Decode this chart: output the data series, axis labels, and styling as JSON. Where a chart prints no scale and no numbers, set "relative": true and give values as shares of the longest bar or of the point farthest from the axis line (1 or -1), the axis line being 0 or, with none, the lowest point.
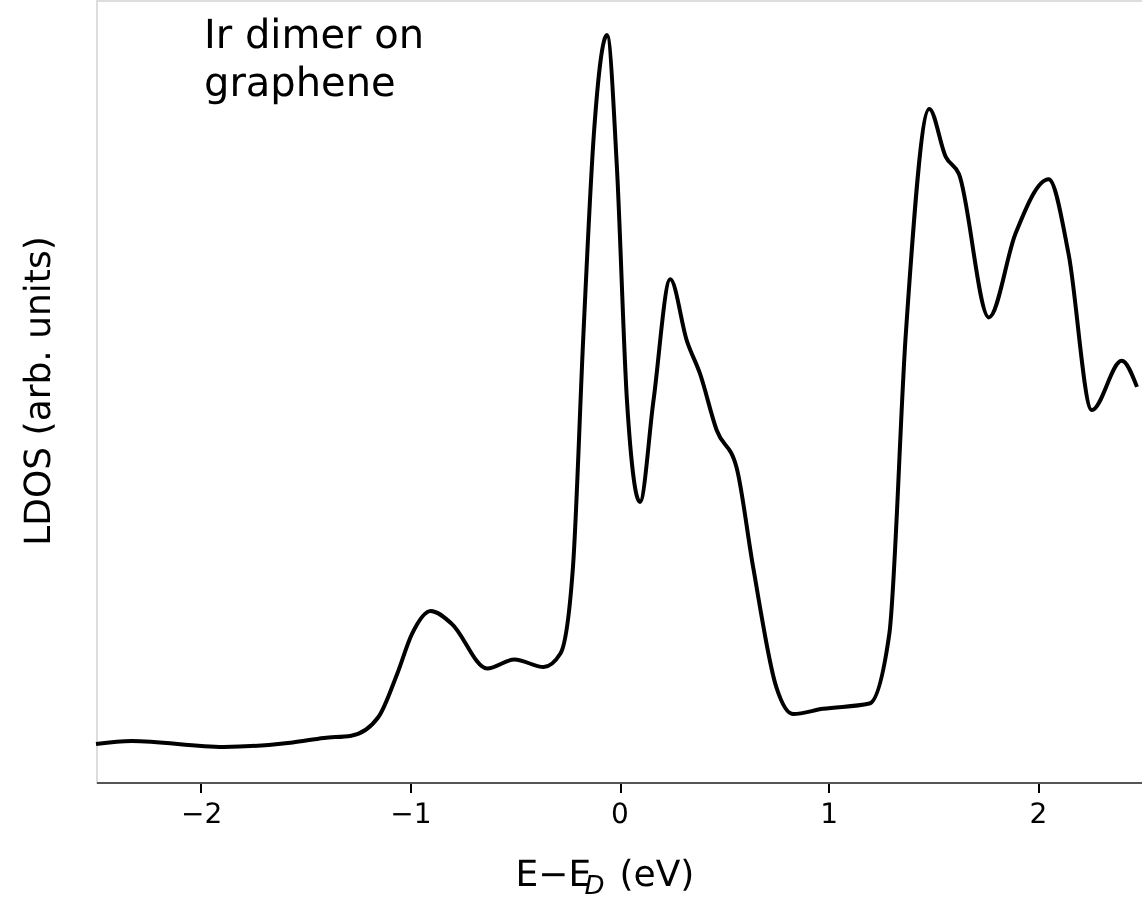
{
  "chart_data": {
    "type": "line",
    "relative": true,
    "xlabel": "E−E$_{D}$ (eV)",
    "ylabel": "LDOS (arb. units)",
    "annotations": [
      "Ir dimer on graphene"
    ],
    "xlim": [
      -2.5,
      2.5
    ],
    "xticks": [
      -2,
      -1,
      0,
      1,
      2
    ],
    "grid": false,
    "marker": "none",
    "line_style": "solid",
    "series": [
      {
        "color": "#000000",
        "x": [
          -2.5,
          -2.33,
          -1.89,
          -1.56,
          -1.41,
          -1.28,
          -1.15,
          -1.06,
          -0.99,
          -0.9,
          -0.8,
          -0.63,
          -0.5,
          -0.36,
          -0.28,
          -0.22,
          -0.17,
          -0.12,
          -0.057,
          -0.01,
          0.038,
          0.1,
          0.165,
          0.245,
          0.324,
          0.388,
          0.467,
          0.562,
          0.641,
          0.752,
          0.832,
          0.975,
          1.197,
          1.292,
          1.371,
          1.483,
          1.562,
          1.625,
          1.768,
          1.895,
          2.054,
          2.149,
          2.26,
          2.403,
          2.476
        ],
        "values": [
          0.051,
          0.055,
          0.047,
          0.053,
          0.059,
          0.062,
          0.087,
          0.145,
          0.198,
          0.229,
          0.212,
          0.152,
          0.164,
          0.154,
          0.172,
          0.288,
          0.6,
          0.868,
          1.0,
          0.823,
          0.511,
          0.375,
          0.511,
          0.673,
          0.591,
          0.546,
          0.471,
          0.421,
          0.288,
          0.127,
          0.091,
          0.098,
          0.105,
          0.198,
          0.6,
          0.901,
          0.837,
          0.814,
          0.622,
          0.734,
          0.807,
          0.707,
          0.498,
          0.564,
          0.529
        ]
      }
    ]
  }
}
